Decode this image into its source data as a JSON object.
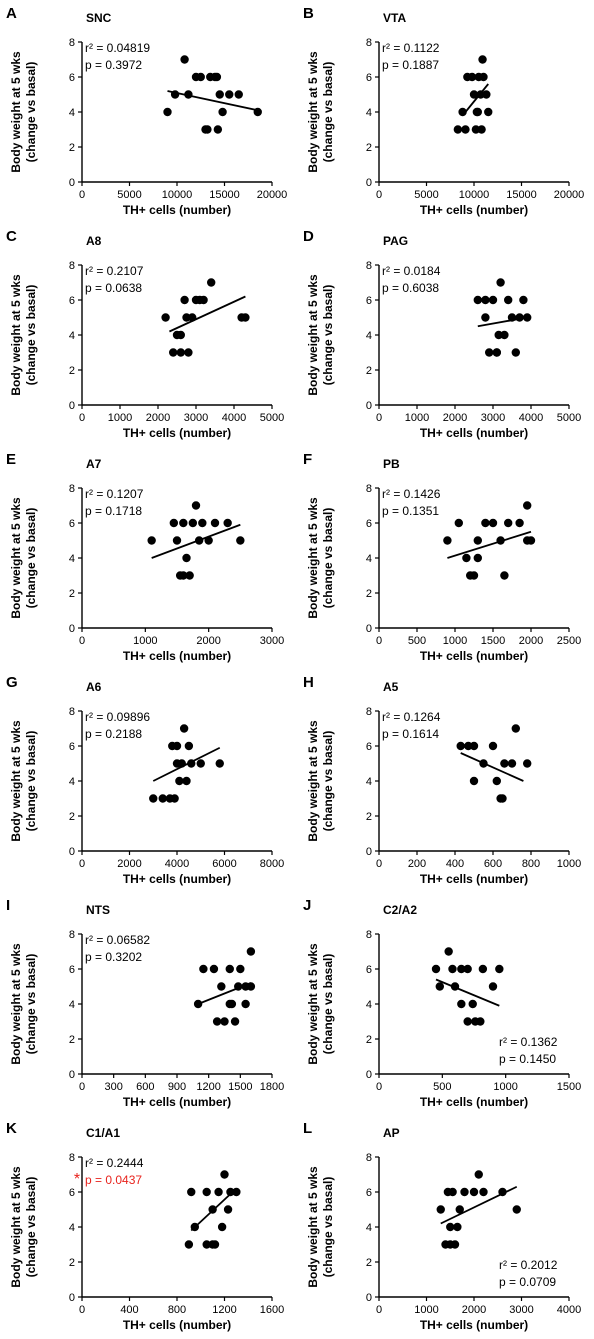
{
  "ylabel_line1": "Body weight at 5 wks",
  "ylabel_line2": "(change vs basal)",
  "xlabel": "TH+ cells (number)",
  "colors": {
    "point": "#000000",
    "sig": "#e8231d"
  },
  "chart_data": [
    {
      "type": "scatter",
      "letter": "A",
      "title": "SNC",
      "xlabel": "TH+ cells (number)",
      "ylabel": "Body weight at 5 wks (change vs basal)",
      "xlim": [
        0,
        20000
      ],
      "xticks": [
        0,
        5000,
        10000,
        15000,
        20000
      ],
      "ylim": [
        0,
        8
      ],
      "yticks": [
        0,
        2,
        4,
        6,
        8
      ],
      "r2": "r² = 0.04819",
      "p": "p = 0.3972",
      "stats_position": "top-left",
      "sig_marker": "",
      "points": [
        [
          9000,
          4
        ],
        [
          9800,
          5
        ],
        [
          10800,
          7
        ],
        [
          11200,
          5
        ],
        [
          12000,
          6
        ],
        [
          12500,
          6
        ],
        [
          13000,
          3
        ],
        [
          13500,
          6
        ],
        [
          14000,
          6
        ],
        [
          14300,
          3
        ],
        [
          14500,
          5
        ],
        [
          13200,
          3
        ],
        [
          14200,
          6
        ],
        [
          14800,
          4
        ],
        [
          15500,
          5
        ],
        [
          16500,
          5
        ],
        [
          18500,
          4
        ]
      ],
      "fit": [
        [
          9000,
          5.2
        ],
        [
          18500,
          4.1
        ]
      ]
    },
    {
      "type": "scatter",
      "letter": "B",
      "title": "VTA",
      "xlabel": "TH+ cells (number)",
      "ylabel": "Body weight at 5 wks (change vs basal)",
      "xlim": [
        0,
        20000
      ],
      "xticks": [
        0,
        5000,
        10000,
        15000,
        20000
      ],
      "ylim": [
        0,
        8
      ],
      "yticks": [
        0,
        2,
        4,
        6,
        8
      ],
      "r2": "r² = 0.1122",
      "p": "p = 0.1887",
      "stats_position": "top-left",
      "sig_marker": "",
      "points": [
        [
          8300,
          3
        ],
        [
          8800,
          4
        ],
        [
          9100,
          3
        ],
        [
          9300,
          6
        ],
        [
          9800,
          6
        ],
        [
          10000,
          5
        ],
        [
          10200,
          3
        ],
        [
          10300,
          4
        ],
        [
          10500,
          6
        ],
        [
          10700,
          5
        ],
        [
          10800,
          3
        ],
        [
          10900,
          7
        ],
        [
          11000,
          6
        ],
        [
          11300,
          5
        ],
        [
          11500,
          4
        ],
        [
          10400,
          4
        ]
      ],
      "fit": [
        [
          8800,
          3.8
        ],
        [
          11500,
          5.6
        ]
      ]
    },
    {
      "type": "scatter",
      "letter": "C",
      "title": "A8",
      "xlabel": "TH+ cells (number)",
      "ylabel": "Body weight at 5 wks (change vs basal)",
      "xlim": [
        0,
        5000
      ],
      "xticks": [
        0,
        1000,
        2000,
        3000,
        4000,
        5000
      ],
      "ylim": [
        0,
        8
      ],
      "yticks": [
        0,
        2,
        4,
        6,
        8
      ],
      "r2": "r² = 0.2107",
      "p": "p = 0.0638",
      "stats_position": "top-left",
      "sig_marker": "",
      "points": [
        [
          2200,
          5
        ],
        [
          2400,
          3
        ],
        [
          2500,
          4
        ],
        [
          2600,
          3
        ],
        [
          2700,
          6
        ],
        [
          2800,
          3
        ],
        [
          2900,
          5
        ],
        [
          3000,
          6
        ],
        [
          3100,
          6
        ],
        [
          2600,
          4
        ],
        [
          2750,
          5
        ],
        [
          3200,
          6
        ],
        [
          3400,
          7
        ],
        [
          4200,
          5
        ],
        [
          4300,
          5
        ]
      ],
      "fit": [
        [
          2300,
          4.2
        ],
        [
          4300,
          6.2
        ]
      ]
    },
    {
      "type": "scatter",
      "letter": "D",
      "title": "PAG",
      "xlabel": "TH+ cells (number)",
      "ylabel": "Body weight at 5 wks (change vs basal)",
      "xlim": [
        0,
        5000
      ],
      "xticks": [
        0,
        1000,
        2000,
        3000,
        4000,
        5000
      ],
      "ylim": [
        0,
        8
      ],
      "yticks": [
        0,
        2,
        4,
        6,
        8
      ],
      "r2": "r² = 0.0184",
      "p": "p = 0.6038",
      "stats_position": "top-left",
      "sig_marker": "",
      "points": [
        [
          2600,
          6
        ],
        [
          2800,
          6
        ],
        [
          2900,
          3
        ],
        [
          3000,
          6
        ],
        [
          3100,
          3
        ],
        [
          3150,
          4
        ],
        [
          3200,
          7
        ],
        [
          3300,
          4
        ],
        [
          3400,
          6
        ],
        [
          3500,
          5
        ],
        [
          3600,
          3
        ],
        [
          3700,
          5
        ],
        [
          3800,
          6
        ],
        [
          3900,
          5
        ],
        [
          2800,
          5
        ],
        [
          3100,
          3
        ]
      ],
      "fit": [
        [
          2600,
          4.5
        ],
        [
          3900,
          5.0
        ]
      ]
    },
    {
      "type": "scatter",
      "letter": "E",
      "title": "A7",
      "xlabel": "TH+ cells (number)",
      "ylabel": "Body weight at 5 wks (change vs basal)",
      "xlim": [
        0,
        3000
      ],
      "xticks": [
        0,
        1000,
        2000,
        3000
      ],
      "ylim": [
        0,
        8
      ],
      "yticks": [
        0,
        2,
        4,
        6,
        8
      ],
      "r2": "r² = 0.1207",
      "p": "p = 0.1718",
      "stats_position": "top-left",
      "sig_marker": "",
      "points": [
        [
          1100,
          5
        ],
        [
          1450,
          6
        ],
        [
          1550,
          3
        ],
        [
          1600,
          6
        ],
        [
          1650,
          4
        ],
        [
          1700,
          3
        ],
        [
          1750,
          6
        ],
        [
          1800,
          7
        ],
        [
          1850,
          5
        ],
        [
          1900,
          6
        ],
        [
          2000,
          5
        ],
        [
          2100,
          6
        ],
        [
          2300,
          6
        ],
        [
          2500,
          5
        ],
        [
          1500,
          5
        ],
        [
          1600,
          3
        ]
      ],
      "fit": [
        [
          1100,
          4.0
        ],
        [
          2500,
          5.9
        ]
      ]
    },
    {
      "type": "scatter",
      "letter": "F",
      "title": "PB",
      "xlabel": "TH+ cells (number)",
      "ylabel": "Body weight at 5 wks (change vs basal)",
      "xlim": [
        0,
        2500
      ],
      "xticks": [
        0,
        500,
        1000,
        1500,
        2000,
        2500
      ],
      "ylim": [
        0,
        8
      ],
      "yticks": [
        0,
        2,
        4,
        6,
        8
      ],
      "r2": "r² = 0.1426",
      "p": "p = 0.1351",
      "stats_position": "top-left",
      "sig_marker": "",
      "points": [
        [
          900,
          5
        ],
        [
          1050,
          6
        ],
        [
          1150,
          4
        ],
        [
          1200,
          3
        ],
        [
          1250,
          3
        ],
        [
          1300,
          4
        ],
        [
          1400,
          6
        ],
        [
          1500,
          6
        ],
        [
          1600,
          5
        ],
        [
          1650,
          3
        ],
        [
          1700,
          6
        ],
        [
          1850,
          6
        ],
        [
          1950,
          7
        ],
        [
          2000,
          5
        ],
        [
          1950,
          5
        ],
        [
          1300,
          5
        ]
      ],
      "fit": [
        [
          900,
          4.0
        ],
        [
          2000,
          5.5
        ]
      ]
    },
    {
      "type": "scatter",
      "letter": "G",
      "title": "A6",
      "xlabel": "TH+ cells (number)",
      "ylabel": "Body weight at 5 wks (change vs basal)",
      "xlim": [
        0,
        8000
      ],
      "xticks": [
        0,
        2000,
        4000,
        6000,
        8000
      ],
      "ylim": [
        0,
        8
      ],
      "yticks": [
        0,
        2,
        4,
        6,
        8
      ],
      "r2": "r² = 0.09896",
      "p": "p = 0.2188",
      "stats_position": "top-left",
      "sig_marker": "",
      "points": [
        [
          3000,
          3
        ],
        [
          3400,
          3
        ],
        [
          3700,
          3
        ],
        [
          3800,
          6
        ],
        [
          3900,
          3
        ],
        [
          4000,
          6
        ],
        [
          4000,
          5
        ],
        [
          4200,
          5
        ],
        [
          4300,
          7
        ],
        [
          4400,
          4
        ],
        [
          4500,
          6
        ],
        [
          4600,
          5
        ],
        [
          5000,
          5
        ],
        [
          5800,
          5
        ],
        [
          4100,
          4
        ]
      ],
      "fit": [
        [
          3000,
          4.0
        ],
        [
          5800,
          5.9
        ]
      ]
    },
    {
      "type": "scatter",
      "letter": "H",
      "title": "A5",
      "xlabel": "TH+ cells (number)",
      "ylabel": "Body weight at 5 wks (change vs basal)",
      "xlim": [
        0,
        1000
      ],
      "xticks": [
        0,
        200,
        400,
        600,
        800,
        1000
      ],
      "ylim": [
        0,
        8
      ],
      "yticks": [
        0,
        2,
        4,
        6,
        8
      ],
      "r2": "r² = 0.1264",
      "p": "p = 0.1614",
      "stats_position": "top-left",
      "sig_marker": "",
      "points": [
        [
          430,
          6
        ],
        [
          470,
          6
        ],
        [
          500,
          6
        ],
        [
          500,
          4
        ],
        [
          550,
          5
        ],
        [
          600,
          6
        ],
        [
          620,
          4
        ],
        [
          640,
          3
        ],
        [
          650,
          3
        ],
        [
          700,
          5
        ],
        [
          720,
          7
        ],
        [
          780,
          5
        ],
        [
          660,
          5
        ]
      ],
      "fit": [
        [
          430,
          5.6
        ],
        [
          760,
          4.0
        ]
      ]
    },
    {
      "type": "scatter",
      "letter": "I",
      "title": "NTS",
      "xlabel": "TH+ cells (number)",
      "ylabel": "Body weight at 5 wks (change vs basal)",
      "xlim": [
        0,
        1800
      ],
      "xticks": [
        0,
        300,
        600,
        900,
        1200,
        1500,
        1800
      ],
      "ylim": [
        0,
        8
      ],
      "yticks": [
        0,
        2,
        4,
        6,
        8
      ],
      "r2": "r² = 0.06582",
      "p": "p = 0.3202",
      "stats_position": "top-left",
      "sig_marker": "",
      "points": [
        [
          1100,
          4
        ],
        [
          1150,
          6
        ],
        [
          1250,
          6
        ],
        [
          1280,
          3
        ],
        [
          1320,
          5
        ],
        [
          1350,
          3
        ],
        [
          1400,
          6
        ],
        [
          1400,
          4
        ],
        [
          1450,
          3
        ],
        [
          1480,
          5
        ],
        [
          1500,
          6
        ],
        [
          1550,
          4
        ],
        [
          1550,
          5
        ],
        [
          1600,
          7
        ],
        [
          1600,
          5
        ],
        [
          1420,
          4
        ]
      ],
      "fit": [
        [
          1100,
          4.0
        ],
        [
          1600,
          5.2
        ]
      ]
    },
    {
      "type": "scatter",
      "letter": "J",
      "title": "C2/A2",
      "xlabel": "TH+ cells (number)",
      "ylabel": "Body weight at 5 wks (change vs basal)",
      "xlim": [
        0,
        1500
      ],
      "xticks": [
        0,
        500,
        1000,
        1500
      ],
      "ylim": [
        0,
        8
      ],
      "yticks": [
        0,
        2,
        4,
        6,
        8
      ],
      "r2": "r² = 0.1362",
      "p": "p = 0.1450",
      "stats_position": "bottom-right",
      "sig_marker": "",
      "points": [
        [
          450,
          6
        ],
        [
          480,
          5
        ],
        [
          550,
          7
        ],
        [
          600,
          5
        ],
        [
          650,
          4
        ],
        [
          700,
          6
        ],
        [
          700,
          3
        ],
        [
          740,
          4
        ],
        [
          760,
          3
        ],
        [
          800,
          3
        ],
        [
          820,
          6
        ],
        [
          900,
          5
        ],
        [
          950,
          6
        ],
        [
          580,
          6
        ],
        [
          650,
          6
        ]
      ],
      "fit": [
        [
          450,
          5.4
        ],
        [
          950,
          3.9
        ]
      ]
    },
    {
      "type": "scatter",
      "letter": "K",
      "title": "C1/A1",
      "xlabel": "TH+ cells (number)",
      "ylabel": "Body weight at 5 wks (change vs basal)",
      "xlim": [
        0,
        1600
      ],
      "xticks": [
        0,
        400,
        800,
        1200,
        1600
      ],
      "ylim": [
        0,
        8
      ],
      "yticks": [
        0,
        2,
        4,
        6,
        8
      ],
      "r2": "r² = 0.2444",
      "p": "p = 0.0437",
      "stats_position": "top-left",
      "sig_marker": "*",
      "points": [
        [
          900,
          3
        ],
        [
          920,
          6
        ],
        [
          950,
          4
        ],
        [
          1050,
          3
        ],
        [
          1050,
          6
        ],
        [
          1100,
          5
        ],
        [
          1120,
          3
        ],
        [
          1150,
          6
        ],
        [
          1180,
          4
        ],
        [
          1200,
          7
        ],
        [
          1230,
          5
        ],
        [
          1250,
          6
        ],
        [
          1300,
          6
        ],
        [
          1100,
          3
        ]
      ],
      "fit": [
        [
          920,
          3.8
        ],
        [
          1300,
          6.2
        ]
      ]
    },
    {
      "type": "scatter",
      "letter": "L",
      "title": "AP",
      "xlabel": "TH+ cells (number)",
      "ylabel": "Body weight at 5 wks (change vs basal)",
      "xlim": [
        0,
        4000
      ],
      "xticks": [
        0,
        1000,
        2000,
        3000,
        4000
      ],
      "ylim": [
        0,
        8
      ],
      "yticks": [
        0,
        2,
        4,
        6,
        8
      ],
      "r2": "r² = 0.2012",
      "p": "p =  0.0709",
      "stats_position": "bottom-right",
      "sig_marker": "",
      "points": [
        [
          1300,
          5
        ],
        [
          1400,
          3
        ],
        [
          1450,
          6
        ],
        [
          1500,
          4
        ],
        [
          1500,
          3
        ],
        [
          1550,
          6
        ],
        [
          1600,
          3
        ],
        [
          1650,
          4
        ],
        [
          1700,
          5
        ],
        [
          1800,
          6
        ],
        [
          2000,
          6
        ],
        [
          2100,
          7
        ],
        [
          2200,
          6
        ],
        [
          2600,
          6
        ],
        [
          2900,
          5
        ]
      ],
      "fit": [
        [
          1300,
          4.2
        ],
        [
          2900,
          6.3
        ]
      ]
    }
  ]
}
